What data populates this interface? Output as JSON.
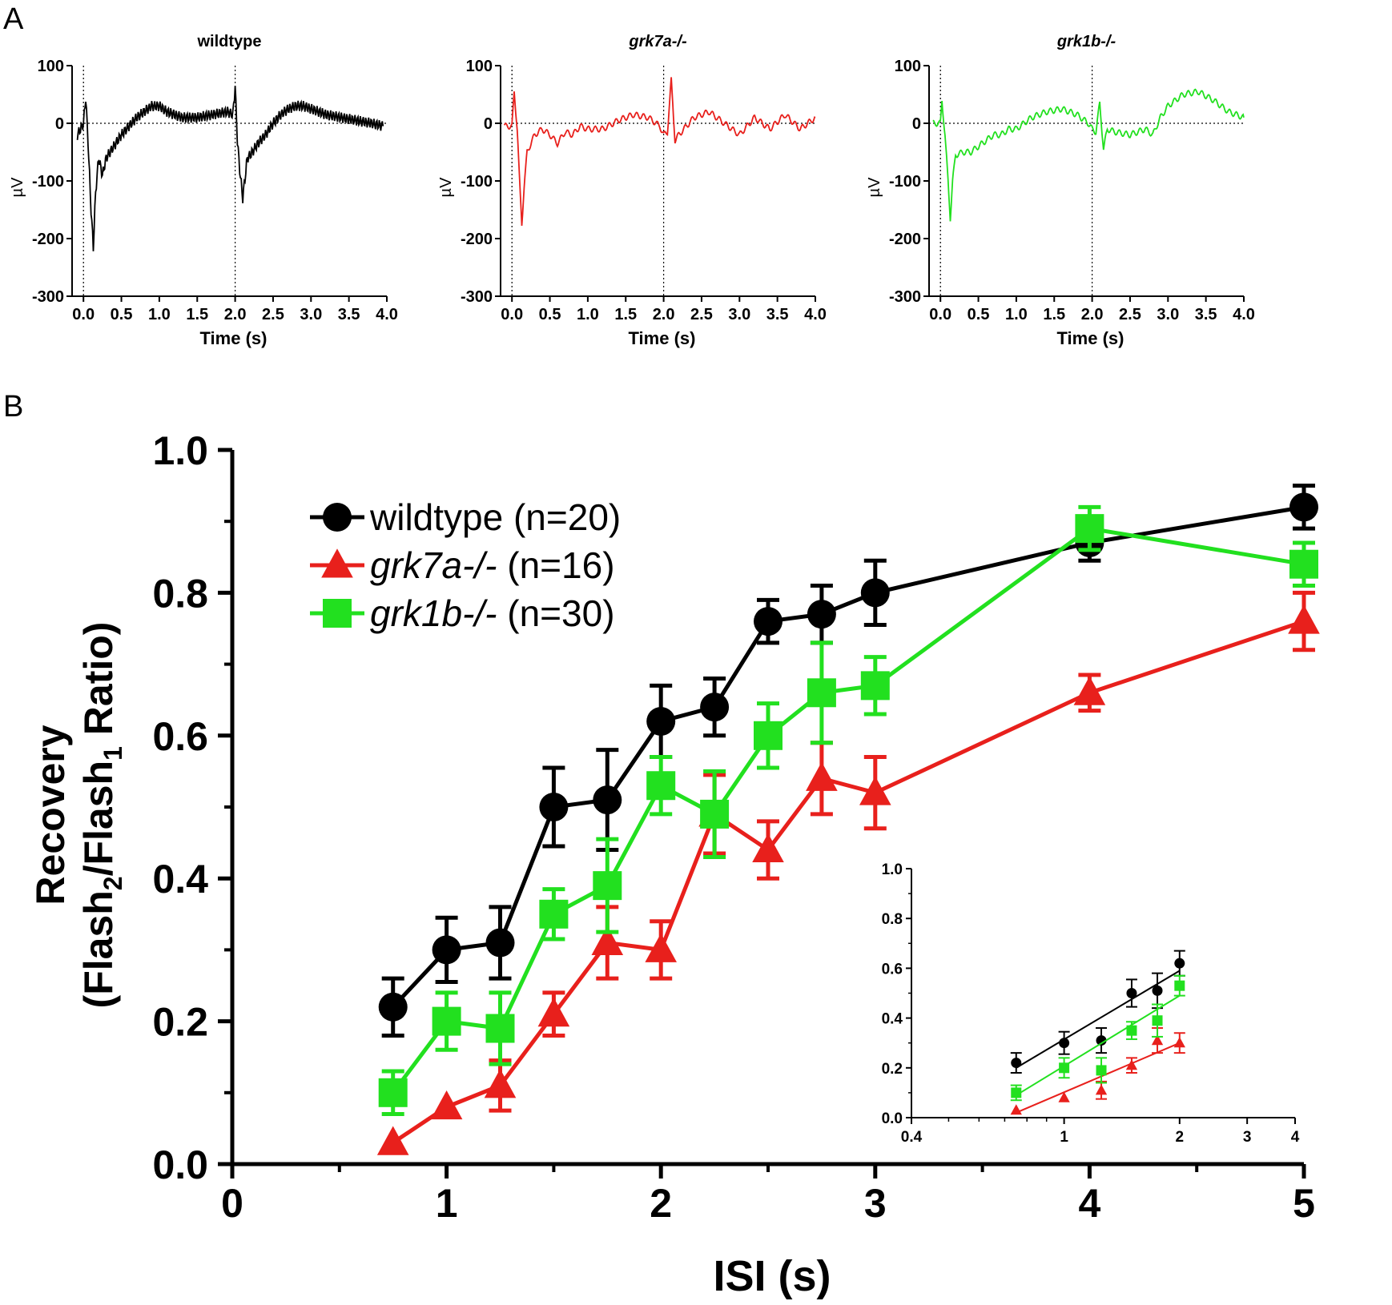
{
  "panel_labels": [
    "A",
    "B"
  ],
  "colors": {
    "wildtype": "#000000",
    "grk7a": "#e8201c",
    "grk1b": "#22e01f"
  },
  "chart_data": [
    {
      "type": "line",
      "title": "wildtype",
      "xlabel": "Time (s)",
      "ylabel": "µV",
      "xlim": [
        -0.15,
        4.0
      ],
      "ylim": [
        -300,
        100
      ],
      "xticks": [
        "0.0",
        "0.5",
        "1.0",
        "1.5",
        "2.0",
        "2.5",
        "3.0",
        "3.5",
        "4.0"
      ],
      "yticks": [
        "100",
        "0",
        "-100",
        "-200",
        "-300"
      ],
      "flash_times": [
        0.0,
        2.0
      ],
      "color": "#000000",
      "x": [
        -0.08,
        0.0,
        0.03,
        0.06,
        0.1,
        0.13,
        0.16,
        0.2,
        0.25,
        0.3,
        0.4,
        0.5,
        0.6,
        0.7,
        0.8,
        0.9,
        1.0,
        1.1,
        1.2,
        1.3,
        1.5,
        1.7,
        1.9,
        1.97,
        2.0,
        2.03,
        2.06,
        2.1,
        2.13,
        2.16,
        2.2,
        2.3,
        2.4,
        2.5,
        2.6,
        2.7,
        2.8,
        2.9,
        3.0,
        3.2,
        3.4,
        3.6,
        3.8,
        3.95
      ],
      "y": [
        -20,
        0,
        45,
        -30,
        -150,
        -215,
        -120,
        -60,
        -90,
        -60,
        -40,
        -20,
        -5,
        10,
        20,
        30,
        30,
        20,
        15,
        10,
        10,
        15,
        20,
        15,
        65,
        -30,
        -80,
        -130,
        -95,
        -60,
        -55,
        -35,
        -20,
        0,
        15,
        25,
        30,
        30,
        25,
        15,
        10,
        5,
        0,
        -5
      ]
    },
    {
      "type": "line",
      "title": "grk7a-/-",
      "xlabel": "Time (s)",
      "ylabel": "µV",
      "xlim": [
        -0.15,
        4.0
      ],
      "ylim": [
        -300,
        100
      ],
      "xticks": [
        "0.0",
        "0.5",
        "1.0",
        "1.5",
        "2.0",
        "2.5",
        "3.0",
        "3.5",
        "4.0"
      ],
      "yticks": [
        "100",
        "0",
        "-100",
        "-200",
        "-300"
      ],
      "flash_times": [
        0.0,
        2.0
      ],
      "color": "#e8201c",
      "x": [
        -0.1,
        0.0,
        0.03,
        0.07,
        0.1,
        0.13,
        0.16,
        0.2,
        0.25,
        0.3,
        0.4,
        0.5,
        0.6,
        0.7,
        0.8,
        0.9,
        1.0,
        1.2,
        1.4,
        1.6,
        1.8,
        1.95,
        2.0,
        2.05,
        2.1,
        2.15,
        2.2,
        2.4,
        2.6,
        2.8,
        3.0,
        3.2,
        3.4,
        3.6,
        3.8,
        4.0
      ],
      "y": [
        -5,
        -5,
        55,
        -10,
        -100,
        -175,
        -110,
        -50,
        -35,
        -20,
        -10,
        -20,
        -35,
        -15,
        -20,
        -5,
        -10,
        -10,
        5,
        15,
        10,
        -5,
        -20,
        -15,
        75,
        -30,
        -20,
        10,
        20,
        0,
        -20,
        10,
        -10,
        15,
        -10,
        10
      ]
    },
    {
      "type": "line",
      "title": "grk1b-/-",
      "xlabel": "Time (s)",
      "ylabel": "µV",
      "xlim": [
        -0.15,
        4.0
      ],
      "ylim": [
        -300,
        100
      ],
      "xticks": [
        "0.0",
        "0.5",
        "1.0",
        "1.5",
        "2.0",
        "2.5",
        "3.0",
        "3.5",
        "4.0"
      ],
      "yticks": [
        "100",
        "0",
        "-100",
        "-200",
        "-300"
      ],
      "flash_times": [
        0.0,
        2.0
      ],
      "color": "#22e01f",
      "x": [
        -0.1,
        0.0,
        0.02,
        0.06,
        0.1,
        0.13,
        0.16,
        0.2,
        0.3,
        0.4,
        0.5,
        0.6,
        0.7,
        0.8,
        0.9,
        1.0,
        1.1,
        1.2,
        1.4,
        1.6,
        1.8,
        1.95,
        2.0,
        2.05,
        2.1,
        2.15,
        2.2,
        2.3,
        2.5,
        2.7,
        2.8,
        2.9,
        3.0,
        3.2,
        3.4,
        3.6,
        3.8,
        4.0
      ],
      "y": [
        0,
        0,
        40,
        -20,
        -100,
        -165,
        -100,
        -55,
        -50,
        -50,
        -40,
        -30,
        -20,
        -20,
        -10,
        -10,
        0,
        10,
        20,
        25,
        15,
        0,
        -10,
        -15,
        35,
        -45,
        -10,
        -15,
        -20,
        -10,
        -20,
        10,
        30,
        50,
        55,
        40,
        20,
        10
      ]
    },
    {
      "type": "line",
      "xlabel": "ISI (s)",
      "ylabel": "Recovery (Flash2/Flash1 Ratio)",
      "ylabel_lines": [
        "Recovery",
        "(Flash",
        "2",
        "/Flash",
        "1",
        " Ratio)"
      ],
      "xlim": [
        0,
        5
      ],
      "ylim": [
        0,
        1
      ],
      "xticks": [
        "0",
        "1",
        "2",
        "3",
        "4",
        "5"
      ],
      "yticks": [
        "0.0",
        "0.2",
        "0.4",
        "0.6",
        "0.8",
        "1.0"
      ],
      "legend_position": "top-left",
      "series": [
        {
          "name": "wildtype",
          "legend_name": "wildtype",
          "legend_n": " (n=20)",
          "italic": false,
          "marker": "circle",
          "color": "#000000",
          "x": [
            0.75,
            1.0,
            1.25,
            1.5,
            1.75,
            2.0,
            2.25,
            2.5,
            2.75,
            3.0,
            4.0,
            5.0
          ],
          "y": [
            0.22,
            0.3,
            0.31,
            0.5,
            0.51,
            0.62,
            0.64,
            0.76,
            0.77,
            0.8,
            0.87,
            0.92
          ],
          "err": [
            0.04,
            0.045,
            0.05,
            0.055,
            0.07,
            0.05,
            0.04,
            0.03,
            0.04,
            0.045,
            0.025,
            0.03
          ]
        },
        {
          "name": "grk7a-/- (n=16)",
          "legend_name": "grk7a-/-",
          "legend_n": " (n=16)",
          "italic": true,
          "marker": "triangle",
          "color": "#e8201c",
          "x": [
            0.75,
            1.0,
            1.25,
            1.5,
            1.75,
            2.0,
            2.25,
            2.5,
            2.75,
            3.0,
            4.0,
            5.0
          ],
          "y": [
            0.03,
            0.08,
            0.11,
            0.21,
            0.31,
            0.3,
            0.49,
            0.44,
            0.54,
            0.52,
            0.66,
            0.76
          ],
          "err": [
            0.0,
            0.0,
            0.035,
            0.03,
            0.05,
            0.04,
            0.055,
            0.04,
            0.05,
            0.05,
            0.025,
            0.04
          ]
        },
        {
          "name": "grk1b-/- (n=30)",
          "legend_name": "grk1b-/-",
          "legend_n": " (n=30)",
          "italic": false,
          "marker": "square",
          "color": "#22e01f",
          "x": [
            0.75,
            1.0,
            1.25,
            1.5,
            1.75,
            2.0,
            2.25,
            2.5,
            2.75,
            3.0,
            4.0,
            5.0
          ],
          "y": [
            0.1,
            0.2,
            0.19,
            0.35,
            0.39,
            0.53,
            0.49,
            0.6,
            0.66,
            0.67,
            0.89,
            0.84
          ],
          "err": [
            0.03,
            0.04,
            0.05,
            0.035,
            0.065,
            0.04,
            0.06,
            0.045,
            0.07,
            0.04,
            0.03,
            0.03
          ]
        }
      ]
    },
    {
      "type": "scatter",
      "title": "",
      "xscale": "log",
      "xlim": [
        0.4,
        4
      ],
      "ylim": [
        0,
        1
      ],
      "xticks": [
        "0.4",
        "1",
        "2",
        "3",
        "4"
      ],
      "yticks": [
        "0.0",
        "0.2",
        "0.4",
        "0.6",
        "0.8",
        "1.0"
      ],
      "series": [
        {
          "marker": "circle",
          "color": "#000000",
          "x": [
            0.75,
            1.0,
            1.25,
            1.5,
            1.75,
            2.0
          ],
          "y": [
            0.22,
            0.3,
            0.31,
            0.5,
            0.51,
            0.62
          ],
          "err": [
            0.04,
            0.045,
            0.05,
            0.055,
            0.07,
            0.05
          ],
          "fit": [
            [
              0.75,
              0.2
            ],
            [
              2.0,
              0.59
            ]
          ]
        },
        {
          "marker": "triangle",
          "color": "#e8201c",
          "x": [
            0.75,
            1.0,
            1.25,
            1.5,
            1.75,
            2.0
          ],
          "y": [
            0.03,
            0.08,
            0.11,
            0.21,
            0.31,
            0.3
          ],
          "err": [
            0.0,
            0.0,
            0.035,
            0.03,
            0.05,
            0.04
          ],
          "fit": [
            [
              0.75,
              0.02
            ],
            [
              2.0,
              0.3
            ]
          ]
        },
        {
          "marker": "square",
          "color": "#22e01f",
          "x": [
            0.75,
            1.0,
            1.25,
            1.5,
            1.75,
            2.0
          ],
          "y": [
            0.1,
            0.2,
            0.19,
            0.35,
            0.39,
            0.53
          ],
          "err": [
            0.03,
            0.04,
            0.05,
            0.035,
            0.065,
            0.04
          ],
          "fit": [
            [
              0.75,
              0.09
            ],
            [
              2.0,
              0.49
            ]
          ]
        }
      ]
    }
  ]
}
